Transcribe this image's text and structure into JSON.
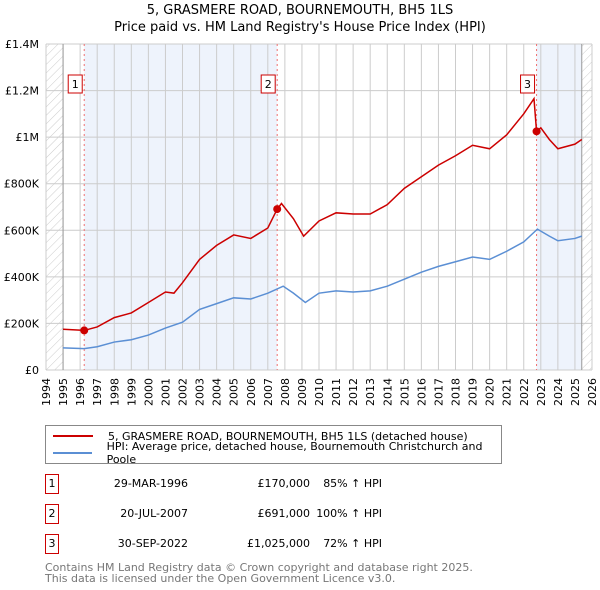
{
  "chart_data": {
    "type": "line",
    "title": "5, GRASMERE ROAD, BOURNEMOUTH, BH5 1LS",
    "subtitle": "Price paid vs. HM Land Registry's House Price Index (HPI)",
    "xlim": [
      1994,
      2026
    ],
    "ylim": [
      0,
      1400000
    ],
    "x_ticks": [
      "1994",
      "1995",
      "1996",
      "1997",
      "1998",
      "1999",
      "2000",
      "2001",
      "2002",
      "2003",
      "2004",
      "2005",
      "2006",
      "2007",
      "2008",
      "2009",
      "2010",
      "2011",
      "2012",
      "2013",
      "2014",
      "2015",
      "2016",
      "2017",
      "2018",
      "2019",
      "2020",
      "2021",
      "2022",
      "2023",
      "2024",
      "2025",
      "2026"
    ],
    "y_ticks": [
      {
        "v": 0,
        "label": "£0"
      },
      {
        "v": 200000,
        "label": "£200K"
      },
      {
        "v": 400000,
        "label": "£400K"
      },
      {
        "v": 600000,
        "label": "£600K"
      },
      {
        "v": 800000,
        "label": "£800K"
      },
      {
        "v": 1000000,
        "label": "£1M"
      },
      {
        "v": 1200000,
        "label": "£1.2M"
      },
      {
        "v": 1400000,
        "label": "£1.4M"
      }
    ],
    "grid": true,
    "series": [
      {
        "name": "5, GRASMERE ROAD, BOURNEMOUTH, BH5 1LS (detached house)",
        "color": "#cc0000",
        "x": [
          1995,
          1996.24,
          1997,
          1998,
          1999,
          2000,
          2001,
          2001.5,
          2002,
          2003,
          2004,
          2005,
          2006,
          2007,
          2007.55,
          2007.8,
          2008.5,
          2009.1,
          2010,
          2011,
          2012,
          2013,
          2014,
          2015,
          2016,
          2017,
          2018,
          2019,
          2020,
          2021,
          2022,
          2022.6,
          2022.75,
          2023,
          2023.5,
          2024,
          2025,
          2025.4
        ],
        "y": [
          175000,
          170000,
          185000,
          225000,
          245000,
          290000,
          335000,
          330000,
          375000,
          475000,
          535000,
          580000,
          565000,
          610000,
          691000,
          715000,
          650000,
          575000,
          640000,
          675000,
          670000,
          670000,
          710000,
          780000,
          830000,
          880000,
          920000,
          965000,
          950000,
          1010000,
          1100000,
          1165000,
          1025000,
          1040000,
          990000,
          950000,
          970000,
          990000
        ]
      },
      {
        "name": "HPI: Average price, detached house, Bournemouth Christchurch and Poole",
        "color": "#5b8fd4",
        "x": [
          1995,
          1996.24,
          1997,
          1998,
          1999,
          2000,
          2001,
          2002,
          2003,
          2004,
          2005,
          2006,
          2007,
          2007.9,
          2008.5,
          2009.2,
          2010,
          2011,
          2012,
          2013,
          2014,
          2015,
          2016,
          2017,
          2018,
          2019,
          2020,
          2021,
          2022,
          2022.8,
          2023.5,
          2024,
          2025,
          2025.4
        ],
        "y": [
          95000,
          92000,
          100000,
          120000,
          130000,
          150000,
          180000,
          205000,
          260000,
          285000,
          310000,
          305000,
          330000,
          360000,
          330000,
          290000,
          330000,
          340000,
          335000,
          340000,
          360000,
          390000,
          420000,
          445000,
          465000,
          485000,
          475000,
          510000,
          550000,
          605000,
          575000,
          555000,
          565000,
          575000
        ]
      }
    ],
    "sales": [
      {
        "n": "1",
        "x": 1996.24,
        "y": 170000,
        "date": "29-MAR-1996",
        "price": "£170,000",
        "hpi": "85% ↑ HPI"
      },
      {
        "n": "2",
        "x": 2007.55,
        "y": 691000,
        "date": "20-JUL-2007",
        "price": "£691,000",
        "hpi": "100% ↑ HPI"
      },
      {
        "n": "3",
        "x": 2022.75,
        "y": 1025000,
        "date": "30-SEP-2022",
        "price": "£1,025,000",
        "hpi": "72% ↑ HPI"
      }
    ],
    "legend_placement": "bottom"
  },
  "footer": [
    "Contains HM Land Registry data © Crown copyright and database right 2025.",
    "This data is licensed under the Open Government Licence v3.0."
  ]
}
